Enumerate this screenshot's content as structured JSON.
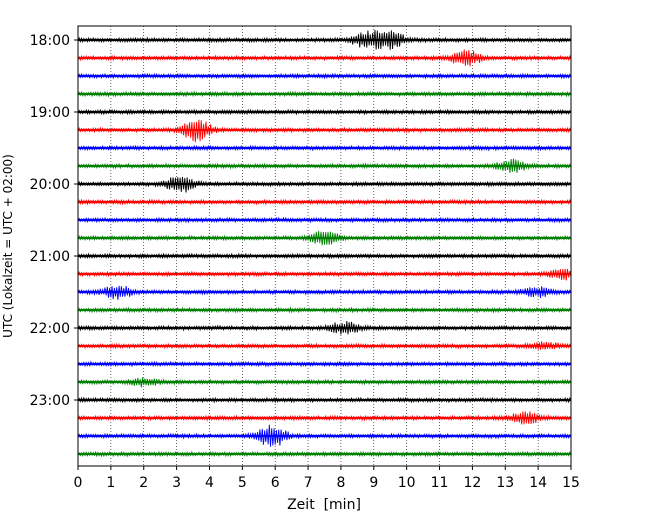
{
  "chart_data": {
    "type": "line",
    "xlabel": "Zeit  [min]",
    "ylabel": "UTC (Lokalzeit = UTC + 02:00)",
    "xlim": [
      0,
      15
    ],
    "x_ticks": [
      0,
      1,
      2,
      3,
      4,
      5,
      6,
      7,
      8,
      9,
      10,
      11,
      12,
      13,
      14,
      15
    ],
    "x_grid": "dotted vertical at each minute",
    "y_ticks": [
      "18:00",
      "19:00",
      "20:00",
      "21:00",
      "22:00",
      "23:00"
    ],
    "traces_per_hour": 4,
    "trace_colors": [
      "#000000",
      "#ff0000",
      "#0000ff",
      "#008000"
    ],
    "traces": [
      {
        "start": "18:00",
        "color": "#000000",
        "events": [
          {
            "t": 8.8,
            "amp": 0.9
          },
          {
            "t": 9.5,
            "amp": 0.9
          }
        ]
      },
      {
        "start": "18:15",
        "color": "#ff0000",
        "events": [
          {
            "t": 11.8,
            "amp": 0.9
          }
        ]
      },
      {
        "start": "18:30",
        "color": "#0000ff",
        "events": []
      },
      {
        "start": "18:45",
        "color": "#008000",
        "events": []
      },
      {
        "start": "19:00",
        "color": "#000000",
        "events": []
      },
      {
        "start": "19:15",
        "color": "#ff0000",
        "events": [
          {
            "t": 3.6,
            "amp": 1.2
          }
        ]
      },
      {
        "start": "19:30",
        "color": "#0000ff",
        "events": []
      },
      {
        "start": "19:45",
        "color": "#008000",
        "events": [
          {
            "t": 13.2,
            "amp": 0.7
          }
        ]
      },
      {
        "start": "20:00",
        "color": "#000000",
        "events": [
          {
            "t": 3.1,
            "amp": 0.9
          }
        ]
      },
      {
        "start": "20:15",
        "color": "#ff0000",
        "events": []
      },
      {
        "start": "20:30",
        "color": "#0000ff",
        "events": []
      },
      {
        "start": "20:45",
        "color": "#008000",
        "events": [
          {
            "t": 7.5,
            "amp": 0.7
          }
        ]
      },
      {
        "start": "21:00",
        "color": "#000000",
        "events": []
      },
      {
        "start": "21:15",
        "color": "#ff0000",
        "events": [
          {
            "t": 14.8,
            "amp": 0.5
          }
        ]
      },
      {
        "start": "21:30",
        "color": "#0000ff",
        "events": [
          {
            "t": 1.2,
            "amp": 0.7
          },
          {
            "t": 14.0,
            "amp": 0.5
          }
        ]
      },
      {
        "start": "21:45",
        "color": "#008000",
        "events": []
      },
      {
        "start": "22:00",
        "color": "#000000",
        "events": [
          {
            "t": 8.1,
            "amp": 0.6
          }
        ]
      },
      {
        "start": "22:15",
        "color": "#ff0000",
        "events": [
          {
            "t": 14.2,
            "amp": 0.4
          }
        ]
      },
      {
        "start": "22:30",
        "color": "#0000ff",
        "events": []
      },
      {
        "start": "22:45",
        "color": "#008000",
        "events": [
          {
            "t": 2.0,
            "amp": 0.4
          }
        ]
      },
      {
        "start": "23:00",
        "color": "#000000",
        "events": []
      },
      {
        "start": "23:15",
        "color": "#ff0000",
        "events": [
          {
            "t": 13.6,
            "amp": 0.6
          }
        ]
      },
      {
        "start": "23:30",
        "color": "#0000ff",
        "events": [
          {
            "t": 5.9,
            "amp": 1.2
          }
        ]
      },
      {
        "start": "23:45",
        "color": "#008000",
        "events": []
      }
    ]
  }
}
